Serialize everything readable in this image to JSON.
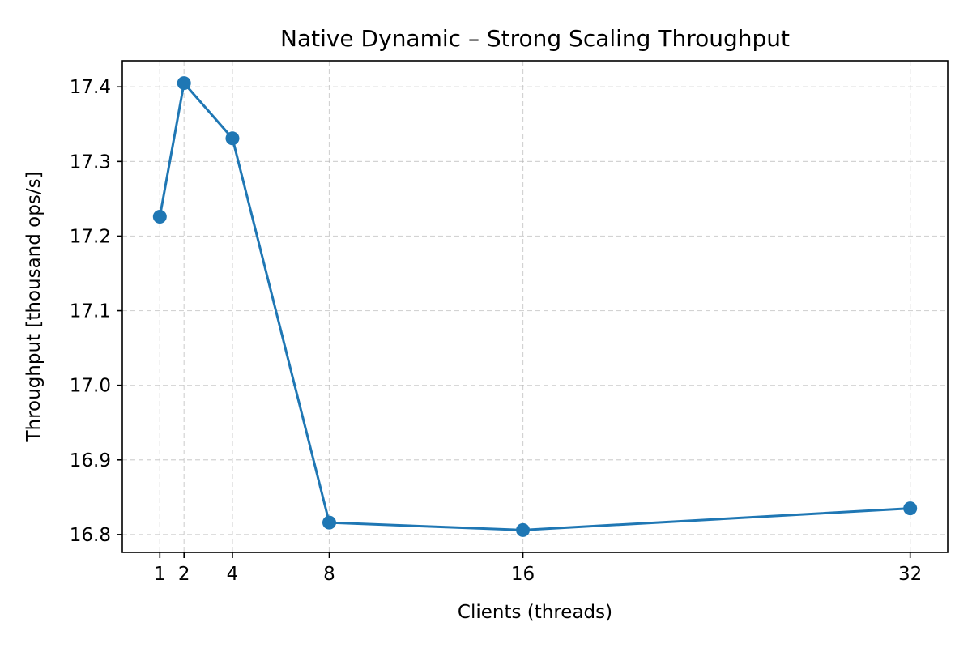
{
  "chart_data": {
    "type": "line",
    "title": "Native Dynamic – Strong Scaling Throughput",
    "xlabel": "Clients (threads)",
    "ylabel": "Throughput [thousand ops/s]",
    "x": [
      1,
      2,
      4,
      8,
      16,
      32
    ],
    "series": [
      {
        "values": [
          17.226,
          17.405,
          17.331,
          16.816,
          16.806,
          16.835
        ],
        "color": "#1f77b4",
        "marker": "circle"
      }
    ],
    "xlim": [
      -0.55,
      33.55
    ],
    "ylim": [
      16.776,
      17.435
    ],
    "xticks": [
      1,
      2,
      4,
      8,
      16,
      32
    ],
    "xtick_labels": [
      "1",
      "2",
      "4",
      "8",
      "16",
      "32"
    ],
    "yticks": [
      16.8,
      16.9,
      17.0,
      17.1,
      17.2,
      17.3,
      17.4
    ],
    "ytick_labels": [
      "16.8",
      "16.9",
      "17.0",
      "17.1",
      "17.2",
      "17.3",
      "17.4"
    ],
    "grid": true,
    "legend": "none"
  }
}
